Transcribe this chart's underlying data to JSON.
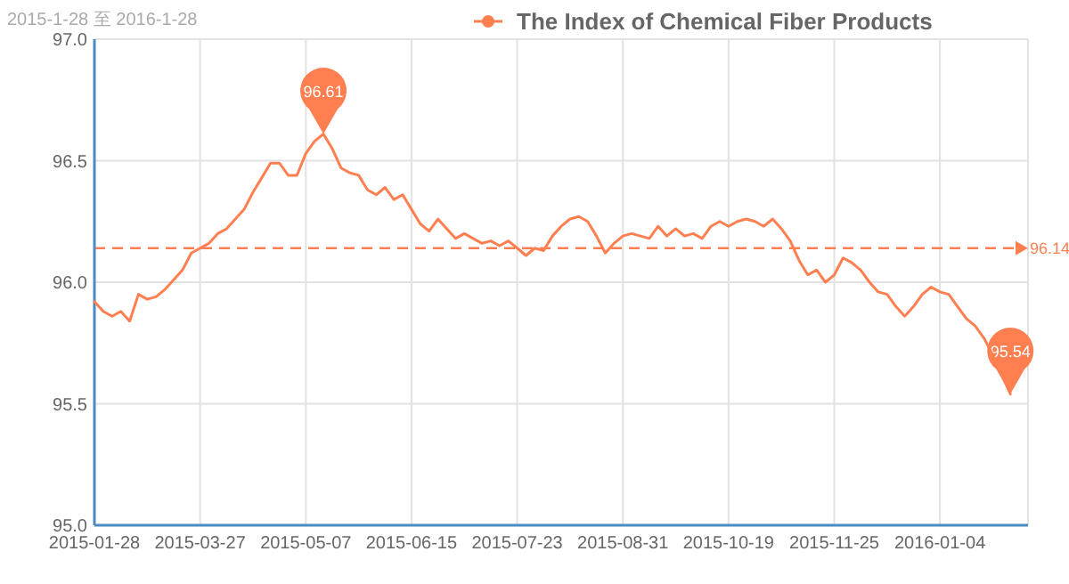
{
  "chart_data": {
    "type": "line",
    "title": "2015-1-28 至 2016-1-28",
    "legend": "top",
    "grid": true,
    "marker": "none",
    "line_style": "solid",
    "categories": [
      "2015-01-28",
      null,
      null,
      null,
      null,
      null,
      null,
      null,
      null,
      null,
      null,
      null,
      "2015-03-27",
      null,
      null,
      null,
      null,
      null,
      null,
      null,
      null,
      null,
      null,
      null,
      "2015-05-07",
      null,
      null,
      null,
      null,
      null,
      null,
      null,
      null,
      null,
      null,
      null,
      "2015-06-15",
      null,
      null,
      null,
      null,
      null,
      null,
      null,
      null,
      null,
      null,
      null,
      "2015-07-23",
      null,
      null,
      null,
      null,
      null,
      null,
      null,
      null,
      null,
      null,
      null,
      "2015-08-31",
      null,
      null,
      null,
      null,
      null,
      null,
      null,
      null,
      null,
      null,
      null,
      "2015-10-19",
      null,
      null,
      null,
      null,
      null,
      null,
      null,
      null,
      null,
      null,
      null,
      "2015-11-25",
      null,
      null,
      null,
      null,
      null,
      null,
      null,
      null,
      null,
      null,
      null,
      "2016-01-04",
      null,
      null,
      null,
      null,
      null,
      null,
      null,
      null
    ],
    "series": [
      {
        "name": "The Index of Chemical Fiber Products",
        "color": "#ff7f50",
        "values": [
          95.92,
          95.88,
          95.86,
          95.88,
          95.84,
          95.95,
          95.93,
          95.94,
          95.97,
          96.01,
          96.05,
          96.12,
          96.14,
          96.16,
          96.2,
          96.22,
          96.26,
          96.3,
          96.37,
          96.43,
          96.49,
          96.49,
          96.44,
          96.44,
          96.53,
          96.58,
          96.61,
          96.55,
          96.47,
          96.45,
          96.44,
          96.38,
          96.36,
          96.39,
          96.34,
          96.36,
          96.3,
          96.24,
          96.21,
          96.26,
          96.22,
          96.18,
          96.2,
          96.18,
          96.16,
          96.17,
          96.15,
          96.17,
          96.14,
          96.11,
          96.14,
          96.13,
          96.19,
          96.23,
          96.26,
          96.27,
          96.25,
          96.19,
          96.12,
          96.16,
          96.19,
          96.2,
          96.19,
          96.18,
          96.23,
          96.19,
          96.22,
          96.19,
          96.2,
          96.18,
          96.23,
          96.25,
          96.23,
          96.25,
          96.26,
          96.25,
          96.23,
          96.26,
          96.22,
          96.17,
          96.09,
          96.03,
          96.05,
          96,
          96.03,
          96.1,
          96.08,
          96.05,
          96,
          95.96,
          95.95,
          95.9,
          95.86,
          95.9,
          95.95,
          95.98,
          95.96,
          95.95,
          95.9,
          95.85,
          95.82,
          95.77,
          95.7,
          95.62,
          95.54
        ]
      }
    ],
    "ylim": [
      95,
      97
    ],
    "yticks": [
      {
        "value": 95,
        "label": "95.0"
      },
      {
        "value": 95.5,
        "label": "95.5"
      },
      {
        "value": 96,
        "label": "96.0"
      },
      {
        "value": 96.5,
        "label": "96.5"
      },
      {
        "value": 97,
        "label": "97.0"
      }
    ],
    "ref_lines": [
      {
        "axis": "y",
        "value": 96.14,
        "label": "96.14",
        "color": "#ff7f50",
        "line_style": "dashed"
      }
    ],
    "annotations": [
      {
        "text": "96.61",
        "y": 96.61
      },
      {
        "text": "95.54",
        "y": 95.54
      }
    ]
  }
}
